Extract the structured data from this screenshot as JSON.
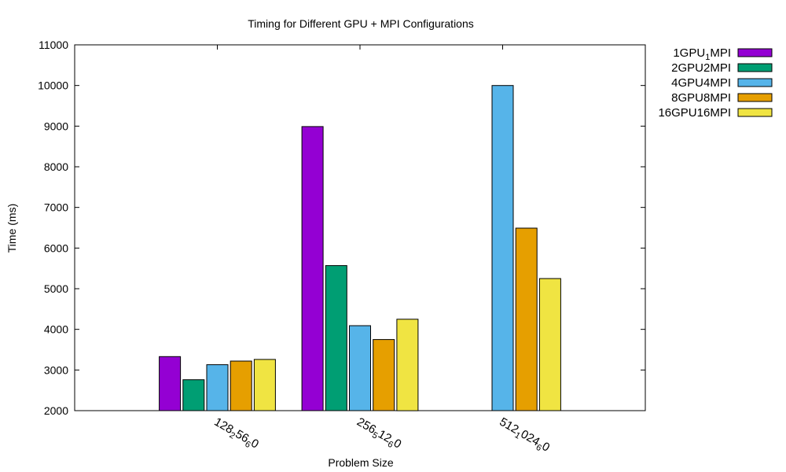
{
  "chart_data": {
    "type": "bar",
    "title": "Timing for Different GPU + MPI Configurations",
    "xlabel": "Problem Size",
    "ylabel": "Time (ms)",
    "ylim": [
      2000,
      11000
    ],
    "yticks": [
      2000,
      3000,
      4000,
      5000,
      6000,
      7000,
      8000,
      9000,
      10000,
      11000
    ],
    "categories": [
      {
        "base": "128",
        "sub1": "2",
        "mid": "56",
        "sub2": "6",
        "tail": "0"
      },
      {
        "base": "256",
        "sub1": "5",
        "mid": "12",
        "sub2": "6",
        "tail": "0"
      },
      {
        "base": "512",
        "sub1": "1",
        "mid": "024",
        "sub2": "6",
        "tail": "0"
      }
    ],
    "series": [
      {
        "name": "1GPU1MPI",
        "legend": {
          "pre": "1GPU",
          "sub": "1",
          "post": "MPI"
        },
        "color": "#9400d3",
        "values": [
          3330,
          8990,
          null
        ]
      },
      {
        "name": "2GPU2MPI",
        "legend": {
          "pre": "2GPU2MPI",
          "sub": "",
          "post": ""
        },
        "color": "#009e73",
        "values": [
          2760,
          5570,
          null
        ]
      },
      {
        "name": "4GPU4MPI",
        "legend": {
          "pre": "4GPU4MPI",
          "sub": "",
          "post": ""
        },
        "color": "#56b4e9",
        "values": [
          3130,
          4090,
          10000
        ]
      },
      {
        "name": "8GPU8MPI",
        "legend": {
          "pre": "8GPU8MPI",
          "sub": "",
          "post": ""
        },
        "color": "#e69f00",
        "values": [
          3220,
          3750,
          6490
        ]
      },
      {
        "name": "16GPU16MPI",
        "legend": {
          "pre": "16GPU16MPI",
          "sub": "",
          "post": ""
        },
        "color": "#f0e442",
        "values": [
          3260,
          4250,
          5250
        ]
      }
    ],
    "grid": false,
    "legend_position": "outside-top-right"
  }
}
